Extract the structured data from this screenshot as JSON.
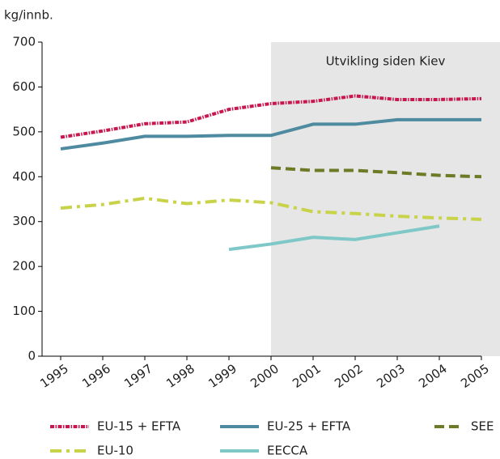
{
  "chart_data": {
    "type": "line",
    "y_label": "kg/innb.",
    "annotation": "Utvikling siden Kiev",
    "highlight_from": 2000,
    "x": [
      1995,
      1996,
      1997,
      1998,
      1999,
      2000,
      2001,
      2002,
      2003,
      2004,
      2005
    ],
    "xlim": [
      1995,
      2005
    ],
    "xticks": [
      1995,
      1996,
      1997,
      1998,
      1999,
      2000,
      2001,
      2002,
      2003,
      2004,
      2005
    ],
    "ylim": [
      0,
      700
    ],
    "yticks": [
      0,
      100,
      200,
      300,
      400,
      500,
      600,
      700
    ],
    "series": [
      {
        "name": "EU-15 + EFTA",
        "color": "#c8174f",
        "dash": "5 1.5 1.5 1.5",
        "values": [
          488,
          502,
          518,
          522,
          550,
          563,
          568,
          580,
          572,
          572,
          574
        ]
      },
      {
        "name": "EU-25 + EFTA",
        "color": "#4e8aa0",
        "dash": "none",
        "values": [
          462,
          475,
          490,
          490,
          492,
          492,
          517,
          517,
          527,
          527,
          527
        ]
      },
      {
        "name": "SEE",
        "color": "#6e7a25",
        "dash": "12 6",
        "values": [
          null,
          null,
          null,
          null,
          null,
          420,
          414,
          414,
          409,
          403,
          400
        ]
      },
      {
        "name": "EU-10",
        "color": "#c9d34a",
        "dash": "14 6 4 6",
        "values": [
          330,
          338,
          352,
          340,
          348,
          342,
          322,
          318,
          312,
          308,
          305
        ]
      },
      {
        "name": "EECCA",
        "color": "#7ec8c7",
        "dash": "none",
        "values": [
          null,
          null,
          null,
          null,
          238,
          250,
          265,
          260,
          275,
          290,
          null
        ]
      }
    ]
  }
}
